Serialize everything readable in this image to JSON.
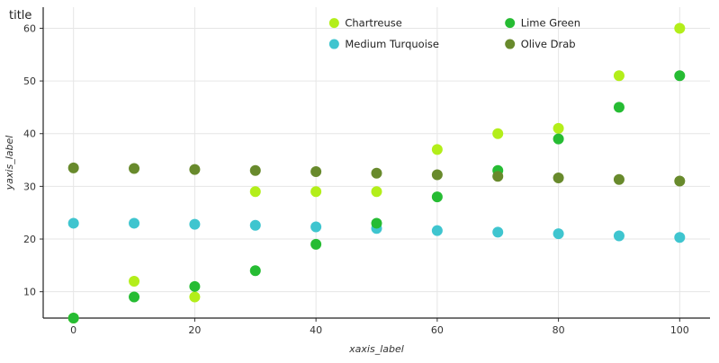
{
  "chart_data": {
    "type": "scatter",
    "title": "title",
    "xlabel": "xaxis_label",
    "ylabel": "yaxis_label",
    "xlim": [
      -5,
      105
    ],
    "ylim": [
      5,
      64
    ],
    "xticks": [
      0,
      20,
      40,
      60,
      80,
      100
    ],
    "yticks": [
      10,
      20,
      30,
      40,
      50,
      60
    ],
    "grid": true,
    "legend_position": "top-center",
    "series": [
      {
        "name": "Chartreuse",
        "color": "#b3ee1a",
        "x": [
          0,
          10,
          20,
          30,
          40,
          50,
          60,
          70,
          80,
          90,
          100
        ],
        "y": [
          5,
          12,
          9,
          29,
          29,
          29,
          37,
          40,
          41,
          51,
          60
        ]
      },
      {
        "name": "Medium Turquoise",
        "color": "#3fc5cf",
        "x": [
          0,
          10,
          20,
          30,
          40,
          50,
          60,
          70,
          80,
          90,
          100
        ],
        "y": [
          23,
          23,
          22.8,
          22.6,
          22.3,
          22,
          21.6,
          21.3,
          21,
          20.6,
          20.3
        ]
      },
      {
        "name": "Lime Green",
        "color": "#26bc33",
        "x": [
          0,
          10,
          20,
          30,
          40,
          50,
          60,
          70,
          80,
          90,
          100
        ],
        "y": [
          5,
          9,
          11,
          14,
          19,
          23,
          28,
          33,
          39,
          45,
          51
        ]
      },
      {
        "name": "Olive Drab",
        "color": "#688a2c",
        "x": [
          0,
          10,
          20,
          30,
          40,
          50,
          60,
          70,
          80,
          90,
          100
        ],
        "y": [
          33.5,
          33.4,
          33.2,
          33.0,
          32.8,
          32.5,
          32.2,
          31.9,
          31.6,
          31.3,
          31.0
        ]
      }
    ]
  }
}
